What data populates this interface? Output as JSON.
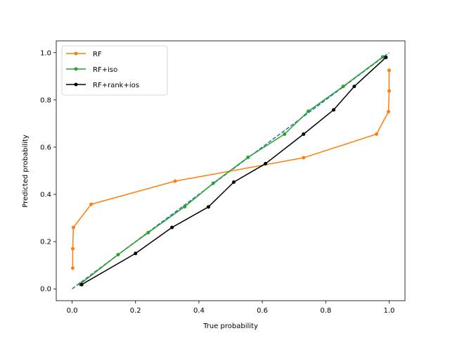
{
  "chart_data": {
    "type": "line",
    "title": "",
    "xlabel": "True probability",
    "ylabel": "Predicted probability",
    "xlim": [
      -0.05,
      1.05
    ],
    "ylim": [
      -0.05,
      1.05
    ],
    "xticks": [
      0.0,
      0.2,
      0.4,
      0.6,
      0.8,
      1.0
    ],
    "yticks": [
      0.0,
      0.2,
      0.4,
      0.6,
      0.8,
      1.0
    ],
    "tick_labels": [
      "0.0",
      "0.2",
      "0.4",
      "0.6",
      "0.8",
      "1.0"
    ],
    "grid": false,
    "legend_position": "top-left",
    "reference_line": {
      "x": [
        0.0,
        1.0
      ],
      "y": [
        0.0,
        1.0
      ],
      "color": "#1f77b4",
      "style": "dashed"
    },
    "series": [
      {
        "name": "RF",
        "color": "#ff7f0e",
        "x": [
          0.002,
          0.002,
          0.004,
          0.06,
          0.325,
          0.73,
          0.96,
          0.998,
          1.0,
          1.0
        ],
        "y": [
          0.088,
          0.17,
          0.26,
          0.358,
          0.456,
          0.555,
          0.655,
          0.75,
          0.838,
          0.925
        ]
      },
      {
        "name": "RF+iso",
        "color": "#2ca02c",
        "x": [
          0.025,
          0.145,
          0.24,
          0.355,
          0.445,
          0.555,
          0.67,
          0.745,
          0.855,
          0.98
        ],
        "y": [
          0.02,
          0.145,
          0.238,
          0.348,
          0.447,
          0.557,
          0.655,
          0.752,
          0.857,
          0.982
        ]
      },
      {
        "name": "RF+rank+ios",
        "color": "#000000",
        "x": [
          0.03,
          0.2,
          0.315,
          0.43,
          0.51,
          0.61,
          0.73,
          0.825,
          0.89,
          0.99
        ],
        "y": [
          0.018,
          0.15,
          0.26,
          0.347,
          0.452,
          0.53,
          0.655,
          0.758,
          0.857,
          0.98
        ]
      }
    ]
  }
}
